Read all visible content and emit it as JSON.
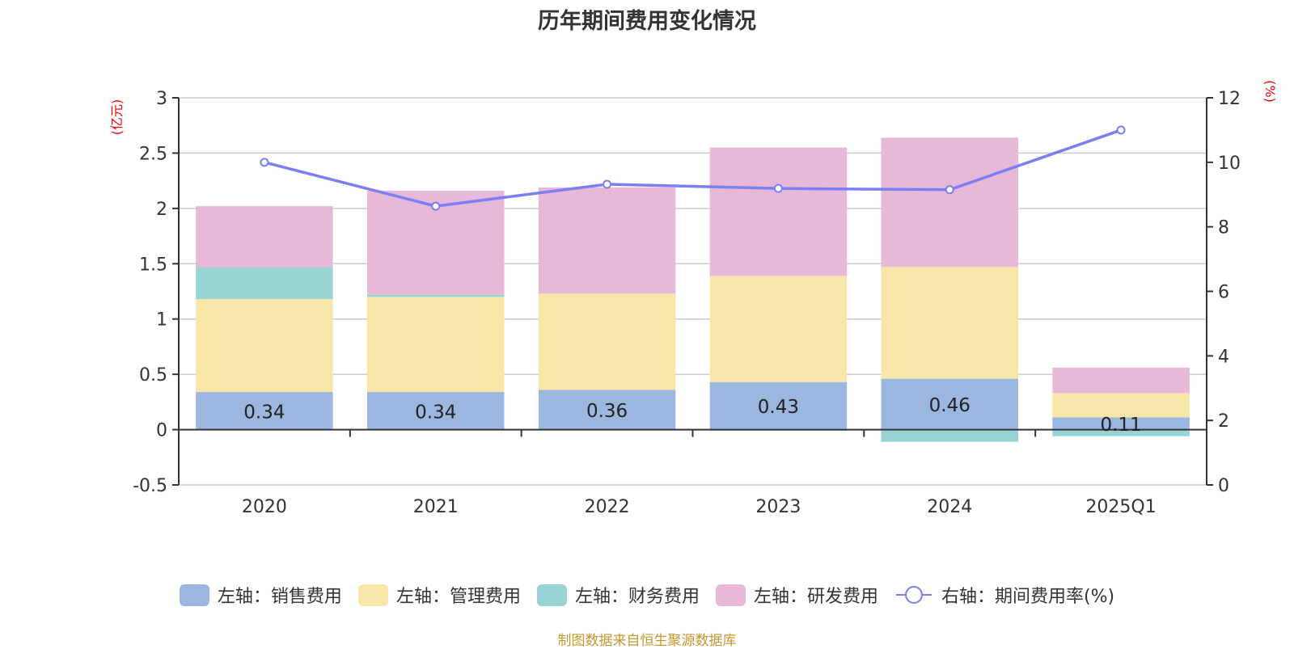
{
  "title": "历年期间费用变化情况",
  "source": "制图数据来自恒生聚源数据库",
  "colors": {
    "sales": "#9bb7e0",
    "admin": "#f8e6a8",
    "finance": "#98d4d4",
    "rnd": "#e7b8d8",
    "rate": "#7b7ff2"
  },
  "chart_data": {
    "type": "bar",
    "stacked": true,
    "title": "历年期间费用变化情况",
    "categories": [
      "2020",
      "2021",
      "2022",
      "2023",
      "2024",
      "2025Q1"
    ],
    "series": [
      {
        "name": "左轴：销售费用",
        "axis": "left",
        "type": "bar",
        "values": [
          0.34,
          0.34,
          0.36,
          0.43,
          0.46,
          0.11
        ],
        "labels": [
          "0.34",
          "0.34",
          "0.36",
          "0.43",
          "0.46",
          "0.11"
        ]
      },
      {
        "name": "左轴：管理费用",
        "axis": "left",
        "type": "bar",
        "values": [
          0.84,
          0.86,
          0.87,
          0.96,
          1.01,
          0.22
        ]
      },
      {
        "name": "左轴：财务费用",
        "axis": "left",
        "type": "bar",
        "values": [
          0.29,
          0.02,
          0.0,
          -0.01,
          -0.11,
          -0.06
        ]
      },
      {
        "name": "左轴：研发费用",
        "axis": "left",
        "type": "bar",
        "values": [
          0.55,
          0.94,
          0.96,
          1.16,
          1.17,
          0.23
        ]
      },
      {
        "name": "右轴：期间费用率(%)",
        "axis": "right",
        "type": "line",
        "values": [
          10.0,
          8.64,
          9.32,
          9.19,
          9.15,
          11.0
        ]
      }
    ],
    "left_axis": {
      "label": "(亿元)",
      "ylim": [
        -0.5,
        3
      ],
      "ticks": [
        "3",
        "2.5",
        "2",
        "1.5",
        "1",
        "0.5",
        "0",
        "-0.5"
      ],
      "tick_values": [
        3,
        2.5,
        2,
        1.5,
        1,
        0.5,
        0,
        -0.5
      ]
    },
    "right_axis": {
      "label": "(%)",
      "ylim": [
        0,
        12
      ],
      "ticks": [
        "12",
        "10",
        "8",
        "6",
        "4",
        "2",
        "0"
      ],
      "tick_values": [
        12,
        10,
        8,
        6,
        4,
        2,
        0
      ]
    },
    "grid": true,
    "legend_position": "bottom"
  }
}
